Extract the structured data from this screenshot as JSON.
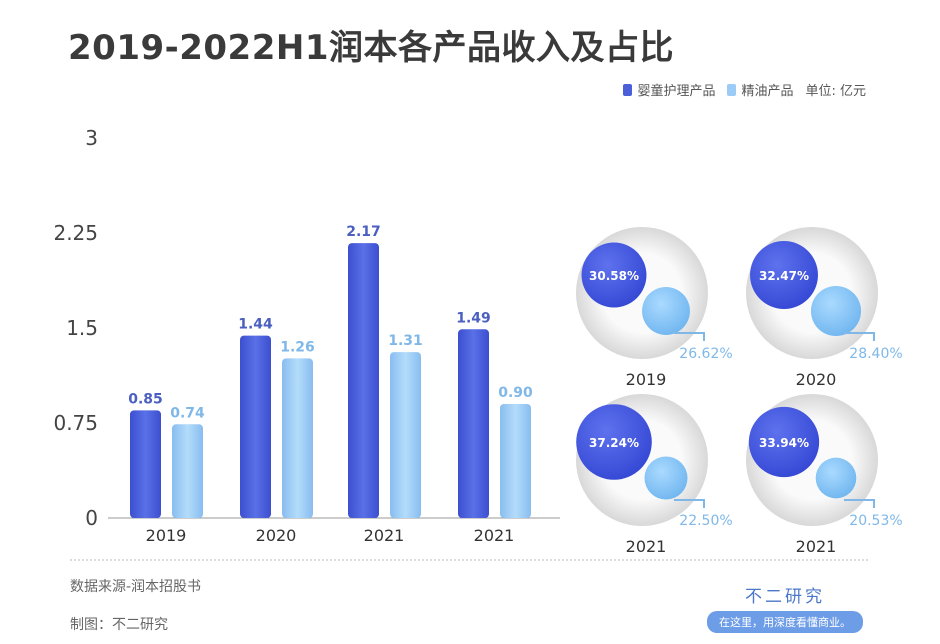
{
  "title": "2019-2022H1润本各产品收入及占比",
  "legend": {
    "series1": "婴童护理产品",
    "series2": "精油产品",
    "unit": "单位: 亿元"
  },
  "colors": {
    "series1": "#4a5fd8",
    "series2": "#9ccbf5",
    "label1": "#4a5fc0",
    "label2": "#7fb8e8"
  },
  "chart_data": [
    {
      "type": "bar",
      "categories": [
        "2019",
        "2020",
        "2021",
        "2021"
      ],
      "series": [
        {
          "name": "婴童护理产品",
          "values": [
            0.85,
            1.44,
            2.17,
            1.49
          ],
          "labels": [
            "0.85",
            "1.44",
            "2.17",
            "1.49"
          ]
        },
        {
          "name": "精油产品",
          "values": [
            0.74,
            1.26,
            1.31,
            0.9
          ],
          "labels": [
            "0.74",
            "1.26",
            "1.31",
            "0.90"
          ]
        }
      ],
      "yticks": [
        "0",
        "0.75",
        "1.5",
        "2.25",
        "3"
      ],
      "ylim": [
        0,
        3
      ],
      "grid": false,
      "legend": "top-right"
    },
    {
      "type": "bubble",
      "panels": [
        {
          "year": "2019",
          "share1": "30.58%",
          "share2": "26.62%",
          "v1": 30.58,
          "v2": 26.62
        },
        {
          "year": "2020",
          "share1": "32.47%",
          "share2": "28.40%",
          "v1": 32.47,
          "v2": 28.4
        },
        {
          "year": "2021",
          "share1": "37.24%",
          "share2": "22.50%",
          "v1": 37.24,
          "v2": 22.5
        },
        {
          "year": "2021",
          "share1": "33.94%",
          "share2": "20.53%",
          "v1": 33.94,
          "v2": 20.53
        }
      ]
    }
  ],
  "footer": {
    "source": "数据来源-润本招股书",
    "maker": "制图：不二研究"
  },
  "brand": {
    "name": "不二研究",
    "tagline": "在这里，用深度看懂商业。"
  }
}
